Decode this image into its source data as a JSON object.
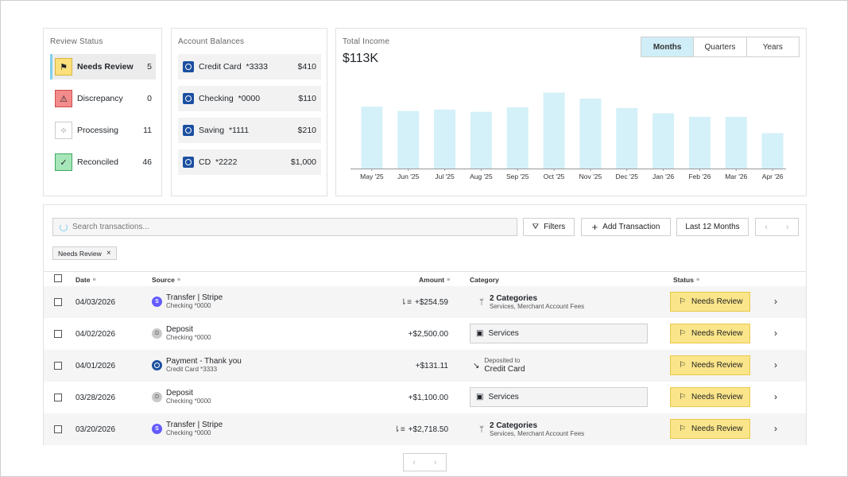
{
  "review_status": {
    "title": "Review Status",
    "items": [
      {
        "label": "Needs Review",
        "count": "5",
        "icon": "flag-icon",
        "glyph": "⚑",
        "bg": "#fbe07c",
        "border": "#d9b53a"
      },
      {
        "label": "Discrepancy",
        "count": "0",
        "icon": "warning-icon",
        "glyph": "⚠",
        "bg": "#f38b8b",
        "border": "#cf4d4d"
      },
      {
        "label": "Processing",
        "count": "11",
        "icon": "spinner-icon",
        "glyph": "⁘",
        "bg": "#ffffff",
        "border": "#cccccc"
      },
      {
        "label": "Reconciled",
        "count": "46",
        "icon": "check-circle-icon",
        "glyph": "✓",
        "bg": "#a7e6b9",
        "border": "#3fa864"
      }
    ]
  },
  "accounts": {
    "title": "Account Balances",
    "items": [
      {
        "name": "Credit Card  *3333",
        "balance": "$410"
      },
      {
        "name": "Checking  *0000",
        "balance": "$110"
      },
      {
        "name": "Saving  *1111",
        "balance": "$210"
      },
      {
        "name": "CD  *2222",
        "balance": "$1,000"
      }
    ]
  },
  "income": {
    "title": "Total Income",
    "total": "$113K",
    "periods": [
      "Months",
      "Quarters",
      "Years"
    ],
    "active_period": "Months"
  },
  "chart_data": {
    "type": "bar",
    "title": "Total Income",
    "categories": [
      "May '25",
      "Jun '25",
      "Jul '25",
      "Aug '25",
      "Sep '25",
      "Oct '25",
      "Nov '25",
      "Dec '25",
      "Jan '26",
      "Feb '26",
      "Mar '26",
      "Apr '26"
    ],
    "values": [
      84,
      78,
      80,
      77,
      83,
      103,
      95,
      82,
      75,
      70,
      70,
      48
    ],
    "ylim": [
      0,
      110
    ],
    "grid": false,
    "bar_color": "#d4f0f9"
  },
  "toolbar": {
    "search_placeholder": "Search transactions...",
    "filters_label": "Filters",
    "add_label": "Add Transaction",
    "range_label": "Last 12 Months",
    "chip_label": "Needs Review"
  },
  "table": {
    "headers": {
      "date": "Date",
      "source": "Source",
      "amount": "Amount",
      "category": "Category",
      "status": "Status"
    },
    "rows": [
      {
        "date": "04/03/2026",
        "source": "Transfer | Stripe",
        "source_sub": "Checking *0000",
        "avatar": "S",
        "avatar_type": "stripe",
        "amount": "+$254.59",
        "split": true,
        "cat_type": "multi",
        "cat_title": "2 Categories",
        "cat_sub": "Services, Merchant Account Fees",
        "status": "Needs Review"
      },
      {
        "date": "04/02/2026",
        "source": "Deposit",
        "source_sub": "Checking *0000",
        "avatar": "D",
        "avatar_type": "deposit",
        "amount": "+$2,500.00",
        "split": false,
        "cat_type": "box",
        "cat_title": "Services",
        "status": "Needs Review"
      },
      {
        "date": "04/01/2026",
        "source": "Payment - Thank you",
        "source_sub": "Credit Card *3333",
        "avatar": "",
        "avatar_type": "bank",
        "amount": "+$131.11",
        "split": false,
        "cat_type": "deposit",
        "cat_sub": "Deposited to",
        "cat_title": "Credit Card",
        "status": "Needs Review"
      },
      {
        "date": "03/28/2026",
        "source": "Deposit",
        "source_sub": "Checking *0000",
        "avatar": "D",
        "avatar_type": "deposit",
        "amount": "+$1,100.00",
        "split": false,
        "cat_type": "box",
        "cat_title": "Services",
        "status": "Needs Review"
      },
      {
        "date": "03/20/2026",
        "source": "Transfer | Stripe",
        "source_sub": "Checking *0000",
        "avatar": "S",
        "avatar_type": "stripe",
        "amount": "+$2,718.50",
        "split": true,
        "cat_type": "multi",
        "cat_title": "2 Categories",
        "cat_sub": "Services, Merchant Account Fees",
        "status": "Needs Review"
      }
    ]
  }
}
